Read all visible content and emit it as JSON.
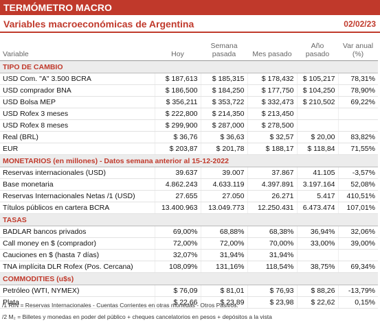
{
  "header": {
    "banner": "TERMÓMETRO MACRO",
    "title": "Variables macroeconómicas de Argentina",
    "date": "02/02/23"
  },
  "columns": [
    "Variable",
    "Hoy",
    "Semana\npasada",
    "Mes pasado",
    "Año\npasado",
    "Var anual\n(%)"
  ],
  "sections": [
    {
      "title": "TIPO DE CAMBIO",
      "rows": [
        [
          "USD Com. \"A\" 3.500 BCRA",
          "$ 187,613",
          "$ 185,315",
          "$ 178,432",
          "$ 105,217",
          "78,31%"
        ],
        [
          "USD comprador BNA",
          "$ 186,500",
          "$ 184,250",
          "$ 177,750",
          "$ 104,250",
          "78,90%"
        ],
        [
          "USD Bolsa MEP",
          "$ 356,211",
          "$ 353,722",
          "$ 332,473",
          "$ 210,502",
          "69,22%"
        ],
        [
          "USD Rofex 3 meses",
          "$ 222,800",
          "$ 214,350",
          "$ 213,450"
        ],
        [
          "USD Rofex 8 meses",
          "$ 299,900",
          "$ 287,000",
          "$ 278,500"
        ],
        [
          "Real (BRL)",
          "$ 36,76",
          "$ 36,63",
          "$ 32,57",
          "$ 20,00",
          "83,82%"
        ],
        [
          "EUR",
          "$ 203,87",
          "$ 201,78",
          "$ 188,17",
          "$ 118,84",
          "71,55%"
        ]
      ]
    },
    {
      "title": "MONETARIOS (en millones) - Datos semana anterior al 15-12-2022",
      "rows": [
        [
          "Reservas internacionales (USD)",
          "39.637",
          "39.007",
          "37.867",
          "41.105",
          "-3,57%"
        ],
        [
          "Base monetaria",
          "4.862.243",
          "4.633.119",
          "4.397.891",
          "3.197.164",
          "52,08%"
        ],
        [
          "Reservas Internacionales Netas /1 (USD)",
          "27.655",
          "27.050",
          "26.271",
          "5.417",
          "410,51%"
        ],
        [
          "Títulos públicos en cartera BCRA",
          "13.400.963",
          "13.049.773",
          "12.250.431",
          "6.473.474",
          "107,01%"
        ]
      ]
    },
    {
      "title": "TASAS",
      "rows": [
        [
          "BADLAR bancos privados",
          "69,00%",
          "68,88%",
          "68,38%",
          "36,94%",
          "32,06%"
        ],
        [
          "Call money en $ (comprador)",
          "72,00%",
          "72,00%",
          "70,00%",
          "33,00%",
          "39,00%"
        ],
        [
          "Cauciones en $ (hasta 7 días)",
          "32,07%",
          "31,94%",
          "31,94%"
        ],
        [
          "TNA implícita DLR Rofex (Pos. Cercana)",
          "108,09%",
          "131,16%",
          "118,54%",
          "38,75%",
          "69,34%"
        ]
      ]
    },
    {
      "title": "COMMODITIES (u$s)",
      "rows": [
        [
          "Petróleo (WTI, NYMEX)",
          "$ 76,09",
          "$ 81,01",
          "$ 76,93",
          "$ 88,26",
          "-13,79%"
        ],
        [
          "Plata",
          "$ 22,66",
          "$ 23,89",
          "$ 23,98",
          "$ 22,62",
          "0,15%"
        ]
      ]
    }
  ],
  "footnotes": [
    "/1 RIN = Reservas Internacionales - Cuentas Corrientes en otras monedas - Otros Pasivos.",
    "/2 M₂ = Billetes y monedas en poder del público + cheques cancelatorios en pesos + depósitos a la vista"
  ]
}
